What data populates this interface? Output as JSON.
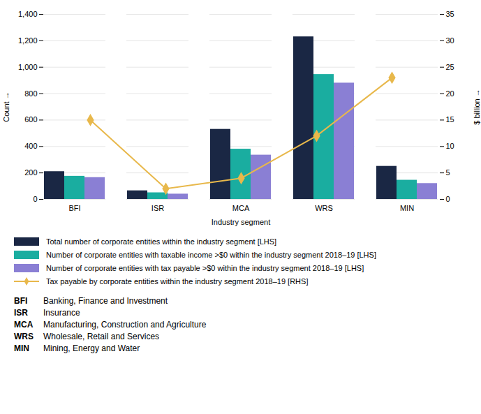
{
  "chart_data": {
    "type": "bar",
    "categories": [
      "BFI",
      "ISR",
      "MCA",
      "WRS",
      "MIN"
    ],
    "series": [
      {
        "name": "Total number of corporate entities within the industry segment [LHS]",
        "type": "bar",
        "color": "#1a2744",
        "values": [
          210,
          65,
          530,
          1230,
          250
        ]
      },
      {
        "name": "Number of corporate entities with taxable income >$0 within the industry segment 2018–19 [LHS]",
        "type": "bar",
        "color": "#1aada0",
        "values": [
          175,
          50,
          380,
          945,
          145
        ]
      },
      {
        "name": "Number of corporate entities with tax payable >$0 within the industry segment 2018–19 [LHS]",
        "type": "bar",
        "color": "#8a7fd4",
        "values": [
          165,
          40,
          335,
          880,
          120
        ]
      },
      {
        "name": "Tax payable by corporate entities within the industry segment 2018–19 [RHS]",
        "type": "line",
        "axis": "y2",
        "marker": "diamond",
        "color": "#e8b84b",
        "values": [
          15.0,
          2.0,
          4.0,
          12.0,
          23.0
        ]
      }
    ],
    "xlabel": "Industry segment",
    "ylabel": "Count",
    "y2label": "$ billion",
    "ylim": [
      0,
      1400
    ],
    "yticks": [
      0,
      200,
      400,
      600,
      800,
      {
        "value": 1000,
        "label": "1,000"
      },
      {
        "value": 1200,
        "label": "1,200"
      },
      {
        "value": 1400,
        "label": "1,400"
      }
    ],
    "y2lim": [
      0,
      35
    ],
    "y2ticks": [
      0,
      5,
      10,
      15,
      20,
      25,
      30,
      35
    ],
    "grid": true,
    "legend": "bottom",
    "annotations": [
      [
        "BFI",
        "Banking, Finance and Investment"
      ],
      [
        "ISR",
        "Insurance"
      ],
      [
        "MCA",
        "Manufacturing, Construction and Agriculture"
      ],
      [
        "WRS",
        "Wholesale, Retail and Services"
      ],
      [
        "MIN",
        "Mining, Energy and Water"
      ]
    ]
  }
}
